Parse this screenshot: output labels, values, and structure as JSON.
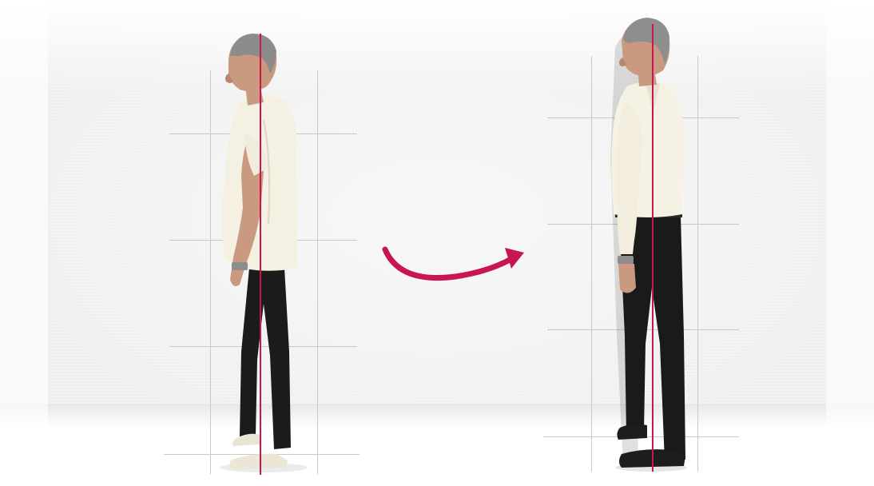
{
  "scene": {
    "description_free": true,
    "colors": {
      "background": "#f2f2f2",
      "plumb_line": "#c8174f",
      "arrow": "#c8174f",
      "grid_line": "#c9c9c9",
      "shirt": "#f4f0e2",
      "trousers": "#1a1a1a",
      "skin": "#c99a80",
      "hair": "#8a8a8a"
    },
    "panels": [
      {
        "id": "before",
        "posture": "forward-head"
      },
      {
        "id": "after",
        "posture": "aligned"
      }
    ],
    "icons": [
      "curved-arrow-icon"
    ]
  }
}
